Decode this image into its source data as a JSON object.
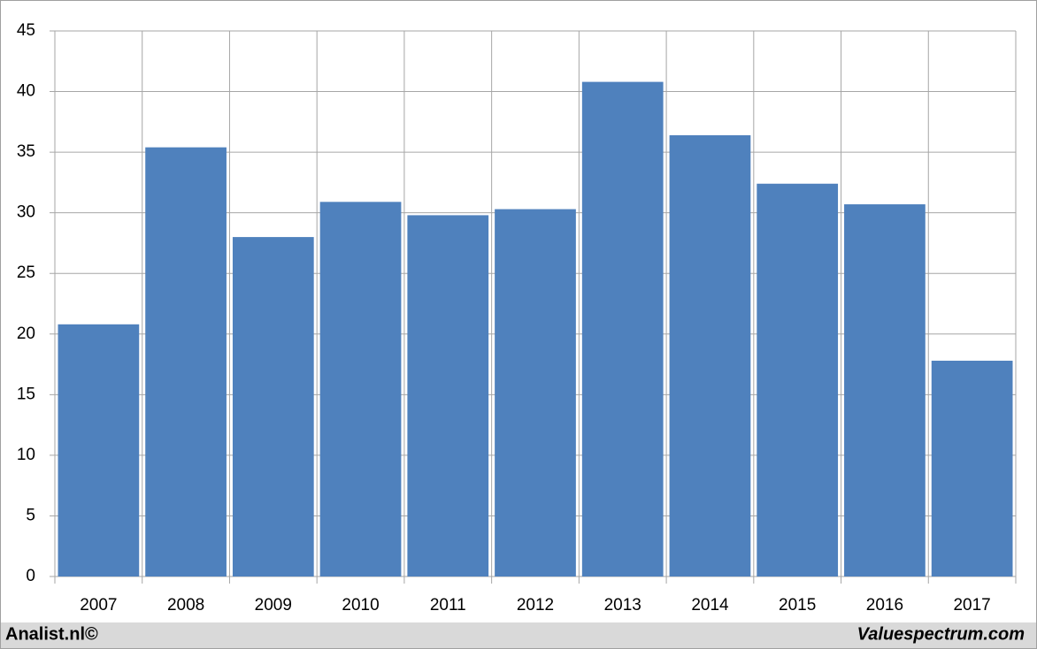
{
  "chart_data": {
    "type": "bar",
    "categories": [
      "2007",
      "2008",
      "2009",
      "2010",
      "2011",
      "2012",
      "2013",
      "2014",
      "2015",
      "2016",
      "2017"
    ],
    "values": [
      20.8,
      35.4,
      28.0,
      30.9,
      29.8,
      30.3,
      40.8,
      36.4,
      32.4,
      30.7,
      17.8
    ],
    "color": "#4f81bd",
    "ylim": [
      0,
      45
    ],
    "yticks": [
      0,
      5,
      10,
      15,
      20,
      25,
      30,
      35,
      40,
      45
    ],
    "grid": true
  },
  "footer": {
    "left": "Analist.nl©",
    "right": "Valuespectrum.com"
  }
}
